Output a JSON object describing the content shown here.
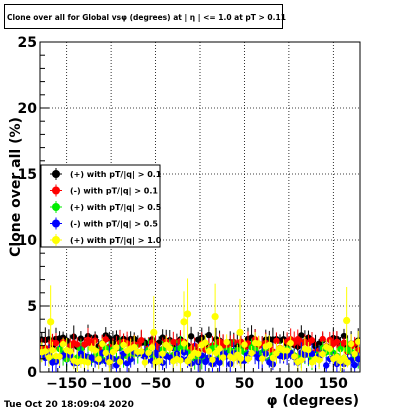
{
  "title": "Clone  over all for Global vsφ (degrees) at | η | <= 1.0 at pT > 0.11",
  "footer_date": "Tue Oct 20 18:09:04 2020",
  "chart_data": {
    "type": "scatter",
    "xlabel": "φ (degrees)",
    "ylabel": "Clone  over all (%)",
    "xlim": [
      -180,
      180
    ],
    "ylim": [
      0,
      25
    ],
    "x_ticks": [
      -150,
      -100,
      -50,
      0,
      50,
      100,
      150
    ],
    "y_ticks": [
      0,
      5,
      10,
      15,
      20,
      25
    ],
    "grid": true,
    "legend_position": "left-middle",
    "series": [
      {
        "name": "(+) with pT/|q| > 0.1",
        "color": "#000000",
        "marker": "circle",
        "base": 2.3
      },
      {
        "name": "(-) with pT/|q| > 0.1",
        "color": "#ff0000",
        "marker": "circle",
        "base": 2.0
      },
      {
        "name": "(+) with pT/|q| > 0.5",
        "color": "#00ee00",
        "marker": "circle",
        "base": 1.4
      },
      {
        "name": "(-) with pT/|q| > 0.5",
        "color": "#0000ff",
        "marker": "circle",
        "base": 1.0
      },
      {
        "name": "(+) with pT/|q| > 1.0",
        "color": "#ffff00",
        "marker": "circle",
        "base": 1.5,
        "outliers": [
          [
            -168,
            3.8
          ],
          [
            -52,
            3.0
          ],
          [
            -18,
            3.8
          ],
          [
            -14,
            4.4
          ],
          [
            17,
            4.2
          ],
          [
            45,
            3.0
          ],
          [
            165,
            3.9
          ]
        ]
      }
    ]
  }
}
